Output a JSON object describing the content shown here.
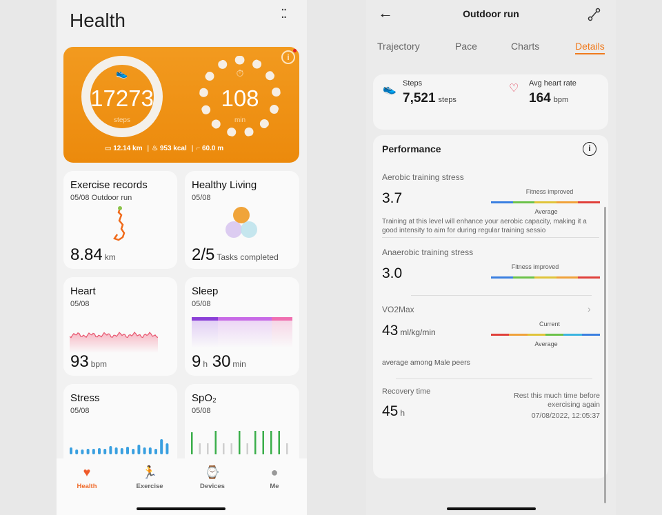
{
  "left": {
    "title": "Health",
    "summary": {
      "steps": "17273",
      "steps_unit": "steps",
      "minutes": "108",
      "minutes_unit": "min",
      "distance": "12.14 km",
      "calories": "953 kcal",
      "elevation": "60.0 m",
      "accent": "#f08c12"
    },
    "cards": {
      "exercise": {
        "title": "Exercise records",
        "date": "05/08 Outdoor run",
        "value": "8.84",
        "unit": "km"
      },
      "living": {
        "title": "Healthy Living",
        "date": "05/08",
        "value": "2/5",
        "unit": "Tasks completed"
      },
      "heart": {
        "title": "Heart",
        "date": "05/08",
        "value": "93",
        "unit": "bpm"
      },
      "sleep": {
        "title": "Sleep",
        "date": "05/08",
        "hours": "9",
        "h_unit": "h",
        "minutes": "30",
        "m_unit": "min"
      },
      "stress": {
        "title": "Stress",
        "date": "05/08"
      },
      "spo2": {
        "title": "SpO₂",
        "date": "05/08"
      }
    },
    "nav": [
      {
        "label": "Health",
        "icon": "heart-icon",
        "active": true
      },
      {
        "label": "Exercise",
        "icon": "runner-icon"
      },
      {
        "label": "Devices",
        "icon": "watch-icon"
      },
      {
        "label": "Me",
        "icon": "person-icon"
      }
    ]
  },
  "right": {
    "title": "Outdoor run",
    "tabs": [
      "Trajectory",
      "Pace",
      "Charts",
      "Details"
    ],
    "active_tab": "Details",
    "steps": {
      "label": "Steps",
      "value": "7,521",
      "unit": "steps"
    },
    "heart": {
      "label": "Avg heart rate",
      "value": "164",
      "unit": "bpm"
    },
    "performance": {
      "title": "Performance",
      "aerobic": {
        "label": "Aerobic training stress",
        "value": "3.7",
        "marker": "Fitness improved",
        "average": "Average",
        "desc": "Training at this level will enhance your aerobic capacity, making it a good intensity to aim for during regular training sessio"
      },
      "anaerobic": {
        "label": "Anaerobic training stress",
        "value": "3.0",
        "marker": "Fitness improved"
      },
      "vo2": {
        "label": "VO2Max",
        "value": "43",
        "unit": "ml/kg/min",
        "marker": "Current",
        "average": "Average",
        "note": "average among Male peers"
      },
      "recovery": {
        "label": "Recovery time",
        "value": "45",
        "unit": "h",
        "note": "Rest this much time before exercising again",
        "timestamp": "07/08/2022, 12:05:37"
      }
    }
  }
}
